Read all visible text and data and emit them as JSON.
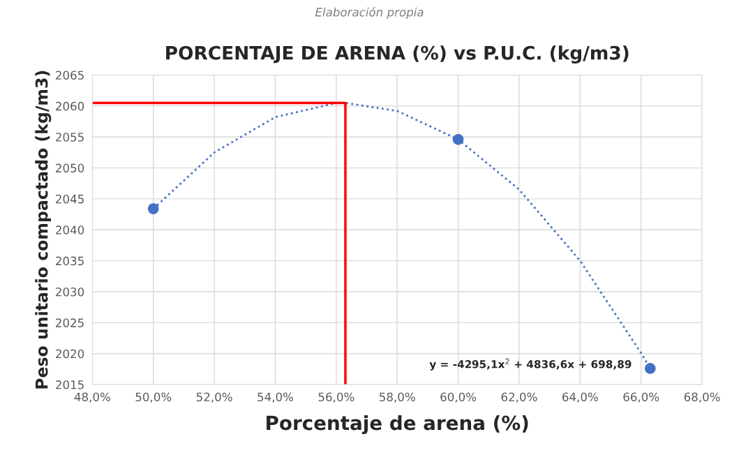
{
  "chart_data": {
    "type": "scatter",
    "title": "PORCENTAJE DE ARENA (%) vs P.U.C. (kg/m3)",
    "xlabel": "Porcentaje de arena (%)",
    "ylabel": "Peso unitario compactado (kg/m3)",
    "annotations": [
      "Elaboración propia",
      "y = -4295,1x$^{2}$ + 4836,6x + 698,89"
    ],
    "series": [
      {
        "type": "line",
        "color": "#4472c4",
        "line_style": "dotted",
        "marker": "none",
        "x": [
          50,
          52,
          54,
          56,
          56.3,
          58,
          60,
          62,
          64,
          66,
          66.3
        ],
        "values": [
          2043.4,
          2052.5,
          2058.2,
          2060.5,
          2060.5,
          2059.2,
          2054.6,
          2046.5,
          2035.0,
          2020.1,
          2017.6
        ]
      },
      {
        "type": "line",
        "color": "#ff0000",
        "line_style": "solid",
        "marker": "none",
        "x": [
          48,
          56.3,
          56.3
        ],
        "values": [
          2060.5,
          2060.5,
          2015
        ]
      },
      {
        "color": "#4472c4",
        "marker": "circle",
        "x": [
          50,
          60,
          66.3
        ],
        "values": [
          2043.4,
          2054.6,
          2017.6
        ]
      }
    ],
    "xlim": [
      48,
      68
    ],
    "xticks": [
      {
        "value": 48,
        "label": "48,0%"
      },
      {
        "value": 50,
        "label": "50,0%"
      },
      {
        "value": 52,
        "label": "52,0%"
      },
      {
        "value": 54,
        "label": "54,0%"
      },
      {
        "value": 56,
        "label": "56,0%"
      },
      {
        "value": 58,
        "label": "58,0%"
      },
      {
        "value": 60,
        "label": "60,0%"
      },
      {
        "value": 62,
        "label": "62,0%"
      },
      {
        "value": 64,
        "label": "64,0%"
      },
      {
        "value": 66,
        "label": "66,0%"
      },
      {
        "value": 68,
        "label": "68,0%"
      }
    ],
    "ylim": [
      2015,
      2065
    ],
    "yticks": [
      2015,
      2020,
      2025,
      2030,
      2035,
      2040,
      2045,
      2050,
      2055,
      2060,
      2065
    ],
    "grid": true,
    "legend": false
  }
}
